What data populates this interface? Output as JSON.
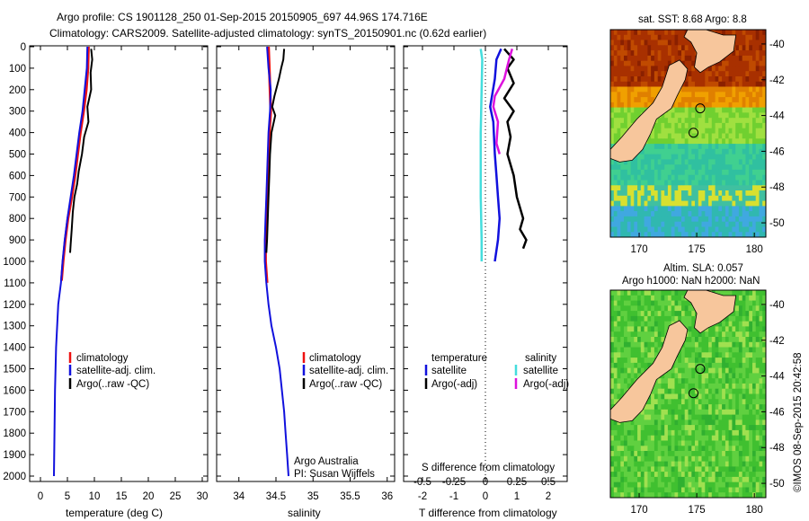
{
  "header": {
    "line1": "Argo profile: CS 1901128_250 01-Sep-2015 20150905_697 44.96S 174.716E",
    "line2": "Climatology: CARS2009. Satellite-adjusted climatology: synTS_20150901.nc (0.62d earlier)"
  },
  "colors": {
    "climatology": "#ee1111",
    "satellite": "#1111dd",
    "argo": "#000000",
    "salinity_satellite": "#44dddd",
    "salinity_argo": "#dd11dd"
  },
  "depth_axis": {
    "ylim": [
      0,
      2000
    ],
    "ticks": [
      "0",
      "100",
      "200",
      "300",
      "400",
      "500",
      "600",
      "700",
      "800",
      "900",
      "1000",
      "1100",
      "1200",
      "1300",
      "1400",
      "1500",
      "1600",
      "1700",
      "1800",
      "1900",
      "2000"
    ]
  },
  "chart_data": [
    {
      "id": "temperature",
      "type": "line",
      "xlabel": "temperature (deg C)",
      "xlim": [
        -2,
        31
      ],
      "xticks": [
        0,
        5,
        10,
        15,
        20,
        25,
        30
      ],
      "xtick_labels": [
        "0",
        "5",
        "10",
        "15",
        "20",
        "25",
        "30"
      ],
      "legend": [
        "climatology",
        "satellite-adj. clim.",
        "Argo(..raw -QC)"
      ],
      "series": [
        {
          "name": "climatology",
          "color_key": "climatology",
          "points": [
            [
              8.9,
              0
            ],
            [
              8.8,
              100
            ],
            [
              8.5,
              200
            ],
            [
              8.0,
              300
            ],
            [
              7.4,
              400
            ],
            [
              6.9,
              500
            ],
            [
              6.4,
              600
            ],
            [
              5.8,
              700
            ],
            [
              5.1,
              800
            ],
            [
              4.6,
              900
            ],
            [
              4.2,
              1000
            ],
            [
              3.9,
              1090
            ]
          ]
        },
        {
          "name": "satellite-adj. clim.",
          "color_key": "satellite",
          "points": [
            [
              8.7,
              0
            ],
            [
              8.6,
              100
            ],
            [
              8.2,
              200
            ],
            [
              7.8,
              300
            ],
            [
              7.2,
              400
            ],
            [
              6.7,
              500
            ],
            [
              6.2,
              600
            ],
            [
              5.6,
              700
            ],
            [
              5.0,
              800
            ],
            [
              4.5,
              900
            ],
            [
              4.1,
              1000
            ],
            [
              3.8,
              1100
            ],
            [
              3.3,
              1200
            ],
            [
              2.9,
              1400
            ],
            [
              2.7,
              1600
            ],
            [
              2.6,
              1800
            ],
            [
              2.5,
              2000
            ]
          ]
        },
        {
          "name": "Argo(..raw -QC)",
          "color_key": "argo",
          "points": [
            [
              9.4,
              10
            ],
            [
              9.6,
              60
            ],
            [
              9.3,
              120
            ],
            [
              9.4,
              200
            ],
            [
              8.7,
              280
            ],
            [
              8.9,
              350
            ],
            [
              8.1,
              420
            ],
            [
              7.7,
              500
            ],
            [
              7.1,
              580
            ],
            [
              6.8,
              640
            ],
            [
              6.3,
              700
            ],
            [
              6.0,
              770
            ],
            [
              5.8,
              850
            ],
            [
              5.6,
              920
            ],
            [
              5.5,
              960
            ]
          ]
        }
      ]
    },
    {
      "id": "salinity",
      "type": "line",
      "xlabel": "salinity",
      "xlim": [
        33.7,
        36.1
      ],
      "xticks": [
        34,
        34.5,
        35,
        35.5,
        36
      ],
      "xtick_labels": [
        "34",
        "34.5",
        "35",
        "35.5",
        "36"
      ],
      "legend": [
        "climatology",
        "satellite-adj. clim.",
        "Argo(..raw -QC)"
      ],
      "annotation": [
        "Argo Australia",
        "PI: Susan Wijffels"
      ],
      "series": [
        {
          "name": "climatology",
          "color_key": "climatology",
          "points": [
            [
              34.4,
              0
            ],
            [
              34.41,
              100
            ],
            [
              34.42,
              200
            ],
            [
              34.43,
              300
            ],
            [
              34.41,
              400
            ],
            [
              34.4,
              500
            ],
            [
              34.39,
              600
            ],
            [
              34.38,
              700
            ],
            [
              34.37,
              800
            ],
            [
              34.36,
              900
            ],
            [
              34.36,
              1000
            ],
            [
              34.38,
              1100
            ]
          ]
        },
        {
          "name": "satellite-adj. clim.",
          "color_key": "satellite",
          "points": [
            [
              34.38,
              0
            ],
            [
              34.4,
              100
            ],
            [
              34.43,
              200
            ],
            [
              34.42,
              300
            ],
            [
              34.4,
              400
            ],
            [
              34.39,
              500
            ],
            [
              34.38,
              600
            ],
            [
              34.37,
              700
            ],
            [
              34.36,
              800
            ],
            [
              34.35,
              900
            ],
            [
              34.35,
              1000
            ],
            [
              34.37,
              1100
            ],
            [
              34.4,
              1200
            ],
            [
              34.44,
              1300
            ],
            [
              34.5,
              1400
            ],
            [
              34.55,
              1500
            ],
            [
              34.58,
              1600
            ],
            [
              34.61,
              1700
            ],
            [
              34.63,
              1800
            ],
            [
              34.65,
              1900
            ],
            [
              34.67,
              2000
            ]
          ]
        },
        {
          "name": "Argo(..raw -QC)",
          "color_key": "argo",
          "points": [
            [
              34.61,
              10
            ],
            [
              34.6,
              60
            ],
            [
              34.57,
              100
            ],
            [
              34.54,
              150
            ],
            [
              34.48,
              230
            ],
            [
              34.45,
              280
            ],
            [
              34.49,
              320
            ],
            [
              34.44,
              400
            ],
            [
              34.42,
              500
            ],
            [
              34.41,
              600
            ],
            [
              34.4,
              700
            ],
            [
              34.39,
              800
            ],
            [
              34.38,
              900
            ],
            [
              34.37,
              960
            ]
          ]
        }
      ]
    },
    {
      "id": "difference",
      "type": "line",
      "xlabel": "T difference from climatology",
      "xlabel2": "S difference from climatology",
      "xlim": [
        -2.6,
        2.6
      ],
      "xticks": [
        -2,
        -1,
        0,
        1,
        2
      ],
      "xtick_labels": [
        "-2",
        "-1",
        "0",
        "1",
        "2"
      ],
      "top_ticks": [
        -0.5,
        -0.25,
        0,
        0.25,
        0.5
      ],
      "top_tick_labels": [
        "-0.5",
        "-0.25",
        "0",
        "0.25",
        "0.5"
      ],
      "legend_left_title": "temperature",
      "legend_right_title": "salinity",
      "legend_left": [
        "satellite",
        "Argo(-adj)"
      ],
      "legend_right": [
        "satellite",
        "Argo(-adj)"
      ],
      "series": [
        {
          "name": "satellite",
          "color_key": "satellite",
          "points": [
            [
              0.5,
              10
            ],
            [
              0.35,
              60
            ],
            [
              0.3,
              150
            ],
            [
              0.15,
              280
            ],
            [
              0.25,
              350
            ],
            [
              0.3,
              500
            ],
            [
              0.35,
              600
            ],
            [
              0.4,
              700
            ],
            [
              0.45,
              800
            ],
            [
              0.4,
              900
            ],
            [
              0.3,
              1000
            ]
          ]
        },
        {
          "name": "Argo(-adj)",
          "color_key": "argo",
          "points": [
            [
              0.6,
              10
            ],
            [
              0.9,
              60
            ],
            [
              0.7,
              100
            ],
            [
              0.9,
              170
            ],
            [
              0.6,
              240
            ],
            [
              0.9,
              300
            ],
            [
              0.7,
              350
            ],
            [
              0.8,
              420
            ],
            [
              0.7,
              500
            ],
            [
              0.9,
              600
            ],
            [
              1.0,
              700
            ],
            [
              1.2,
              800
            ],
            [
              1.1,
              850
            ],
            [
              1.3,
              900
            ],
            [
              1.2,
              940
            ]
          ]
        },
        {
          "name": "satellite",
          "color_key": "salinity_satellite",
          "points": [
            [
              -0.15,
              10
            ],
            [
              -0.1,
              60
            ],
            [
              -0.12,
              200
            ],
            [
              -0.15,
              400
            ],
            [
              -0.15,
              700
            ],
            [
              -0.12,
              900
            ],
            [
              -0.12,
              1000
            ]
          ]
        },
        {
          "name": "Argo(-adj)",
          "color_key": "salinity_argo",
          "points": [
            [
              0.85,
              10
            ],
            [
              0.75,
              60
            ],
            [
              0.6,
              150
            ],
            [
              0.3,
              230
            ],
            [
              0.25,
              280
            ],
            [
              0.4,
              350
            ],
            [
              0.35,
              450
            ],
            [
              0.45,
              500
            ]
          ]
        }
      ]
    },
    {
      "id": "sst_map",
      "type": "heatmap",
      "title": "sat. SST: 8.68 Argo: 8.8",
      "xticks": [
        170,
        175,
        180
      ],
      "yticks": [
        -40,
        -42,
        -44,
        -46,
        -48,
        -50
      ],
      "xtick_labels": [
        "170",
        "175",
        "180"
      ],
      "ytick_labels": [
        "-40",
        "-42",
        "-44",
        "-46",
        "-48",
        "-50"
      ]
    },
    {
      "id": "sla_map",
      "type": "heatmap",
      "title1": "Altim. SLA: 0.057",
      "title2": "Argo h1000: NaN h2000: NaN",
      "xticks": [
        170,
        175,
        180
      ],
      "yticks": [
        -40,
        -42,
        -44,
        -46,
        -48,
        -50
      ],
      "xtick_labels": [
        "170",
        "175",
        "180"
      ],
      "ytick_labels": [
        "-40",
        "-42",
        "-44",
        "-46",
        "-48",
        "-50"
      ]
    }
  ],
  "footer": {
    "credit": "©IMOS 08-Sep-2015 20:42:58"
  }
}
